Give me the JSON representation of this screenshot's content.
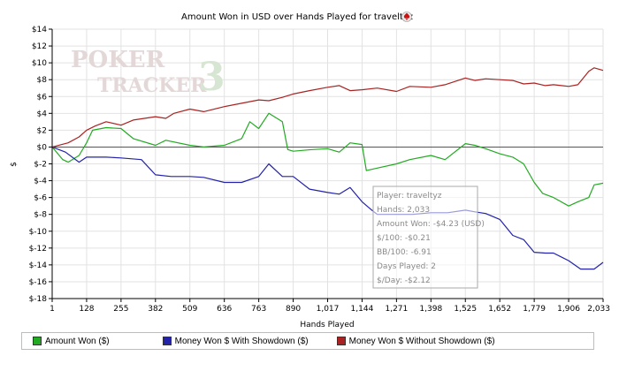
{
  "chart_data": {
    "type": "line",
    "title": "Amount Won in USD over Hands Played for traveltyz",
    "xlabel": "Hands Played",
    "ylabel": "$",
    "xlim": [
      1,
      2033
    ],
    "ylim": [
      -18,
      14
    ],
    "x_ticks": [
      1,
      128,
      255,
      382,
      509,
      636,
      763,
      890,
      1017,
      1144,
      1271,
      1398,
      1525,
      1652,
      1779,
      1906,
      2033
    ],
    "x_tick_labels": [
      "1",
      "128",
      "255",
      "382",
      "509",
      "636",
      "763",
      "890",
      "1,017",
      "1,144",
      "1,271",
      "1,398",
      "1,525",
      "1,652",
      "1,779",
      "1,906",
      "2,033"
    ],
    "y_ticks": [
      -18,
      -16,
      -14,
      -12,
      -10,
      -8,
      -6,
      -4,
      -2,
      0,
      2,
      4,
      6,
      8,
      10,
      12,
      14
    ],
    "y_tick_labels": [
      "$-18",
      "$-16",
      "$-14",
      "$-12",
      "$-10",
      "$-8",
      "$-6",
      "$-4",
      "$-2",
      "$0",
      "$2",
      "$4",
      "$6",
      "$8",
      "$10",
      "$12",
      "$14"
    ],
    "grid": true,
    "legend_position": "bottom",
    "series": [
      {
        "name": "Amount Won ($)",
        "color": "#22aa22",
        "x": [
          1,
          40,
          60,
          100,
          128,
          150,
          200,
          255,
          300,
          382,
          420,
          509,
          560,
          636,
          700,
          730,
          763,
          800,
          850,
          870,
          890,
          960,
          1017,
          1060,
          1100,
          1144,
          1160,
          1200,
          1271,
          1320,
          1398,
          1450,
          1525,
          1560,
          1600,
          1652,
          1700,
          1740,
          1779,
          1810,
          1850,
          1906,
          1940,
          1980,
          2000,
          2033
        ],
        "y": [
          0,
          -1.5,
          -1.8,
          -1,
          0.5,
          2,
          2.3,
          2.2,
          1,
          0.2,
          0.8,
          0.2,
          0,
          0.2,
          1,
          3,
          2.2,
          4,
          3,
          -0.3,
          -0.5,
          -0.3,
          -0.2,
          -0.6,
          0.5,
          0.3,
          -2.8,
          -2.5,
          -2,
          -1.5,
          -1,
          -1.5,
          0.4,
          0.2,
          -0.2,
          -0.8,
          -1.2,
          -2,
          -4.2,
          -5.5,
          -6,
          -7,
          -6.5,
          -6,
          -4.5,
          -4.3
        ]
      },
      {
        "name": "Money Won $ With Showdown ($)",
        "color": "#2222aa",
        "x": [
          1,
          50,
          100,
          128,
          200,
          255,
          330,
          382,
          440,
          509,
          560,
          636,
          700,
          763,
          800,
          850,
          890,
          950,
          1017,
          1060,
          1100,
          1144,
          1180,
          1200,
          1271,
          1330,
          1398,
          1460,
          1525,
          1560,
          1600,
          1652,
          1700,
          1740,
          1779,
          1820,
          1850,
          1906,
          1950,
          2000,
          2033
        ],
        "y": [
          0,
          -0.6,
          -1.8,
          -1.2,
          -1.2,
          -1.3,
          -1.5,
          -3.3,
          -3.5,
          -3.5,
          -3.6,
          -4.2,
          -4.2,
          -3.5,
          -2,
          -3.5,
          -3.5,
          -5,
          -5.4,
          -5.6,
          -4.8,
          -6.5,
          -7.5,
          -8,
          -8,
          -8,
          -7.8,
          -7.8,
          -7.5,
          -7.7,
          -7.9,
          -8.6,
          -10.5,
          -11,
          -12.5,
          -12.6,
          -12.6,
          -13.5,
          -14.5,
          -14.5,
          -13.7
        ]
      },
      {
        "name": "Money Won $ Without Showdown ($)",
        "color": "#aa2222",
        "x": [
          1,
          60,
          100,
          128,
          160,
          200,
          255,
          300,
          382,
          420,
          450,
          509,
          560,
          636,
          700,
          763,
          800,
          850,
          890,
          950,
          1017,
          1060,
          1100,
          1144,
          1200,
          1271,
          1320,
          1398,
          1450,
          1525,
          1560,
          1600,
          1652,
          1700,
          1740,
          1779,
          1820,
          1850,
          1906,
          1940,
          1980,
          2000,
          2033
        ],
        "y": [
          0,
          0.5,
          1.2,
          2,
          2.5,
          3,
          2.6,
          3.2,
          3.6,
          3.4,
          4,
          4.5,
          4.2,
          4.8,
          5.2,
          5.6,
          5.5,
          5.9,
          6.3,
          6.7,
          7.1,
          7.3,
          6.7,
          6.8,
          7,
          6.6,
          7.2,
          7.1,
          7.4,
          8.2,
          7.9,
          8.1,
          8,
          7.9,
          7.5,
          7.6,
          7.3,
          7.4,
          7.2,
          7.4,
          9,
          9.4,
          9.1
        ]
      }
    ],
    "tooltip": [
      "Player: traveltyz",
      "Hands: 2,033",
      "Amount Won: -$4.23 (USD)",
      "$/100: -$0.21",
      "BB/100: -6.91",
      "Days Played: 2",
      "$/Day: -$2.12"
    ],
    "watermark": [
      "POKER",
      "TRACKER",
      "3"
    ]
  }
}
